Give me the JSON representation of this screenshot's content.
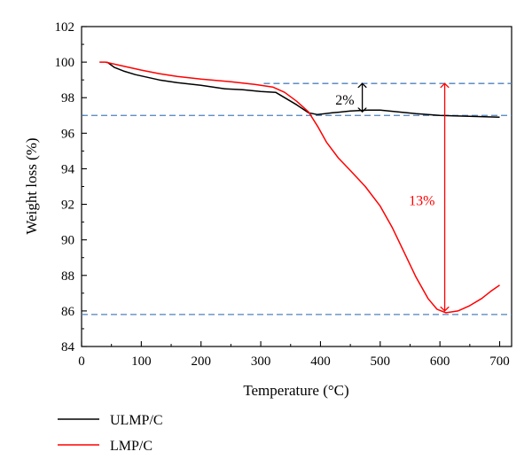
{
  "chart_data": {
    "type": "line",
    "xlabel": "Temperature (°C)",
    "ylabel": "Weight loss (%)",
    "xlim": [
      0,
      720
    ],
    "ylim": [
      84,
      102
    ],
    "xticks": [
      0,
      100,
      200,
      300,
      400,
      500,
      600,
      700
    ],
    "yticks": [
      84,
      86,
      88,
      90,
      92,
      94,
      96,
      98,
      100,
      102
    ],
    "grid": false,
    "legend_position": "bottom-left",
    "series": [
      {
        "name": "ULMP/C",
        "color": "#000000",
        "points": [
          [
            42,
            100.0
          ],
          [
            45,
            99.95
          ],
          [
            55,
            99.7
          ],
          [
            70,
            99.5
          ],
          [
            90,
            99.3
          ],
          [
            110,
            99.15
          ],
          [
            130,
            99.0
          ],
          [
            160,
            98.85
          ],
          [
            200,
            98.7
          ],
          [
            240,
            98.5
          ],
          [
            270,
            98.45
          ],
          [
            300,
            98.35
          ],
          [
            325,
            98.3
          ],
          [
            340,
            98.0
          ],
          [
            360,
            97.6
          ],
          [
            380,
            97.15
          ],
          [
            395,
            97.05
          ],
          [
            420,
            97.15
          ],
          [
            450,
            97.25
          ],
          [
            480,
            97.3
          ],
          [
            500,
            97.3
          ],
          [
            530,
            97.2
          ],
          [
            560,
            97.1
          ],
          [
            600,
            97.0
          ],
          [
            650,
            96.95
          ],
          [
            700,
            96.9
          ]
        ]
      },
      {
        "name": "LMP/C",
        "color": "#ff0000",
        "points": [
          [
            30,
            100.0
          ],
          [
            40,
            100.0
          ],
          [
            60,
            99.85
          ],
          [
            80,
            99.7
          ],
          [
            100,
            99.55
          ],
          [
            130,
            99.35
          ],
          [
            160,
            99.2
          ],
          [
            200,
            99.05
          ],
          [
            250,
            98.9
          ],
          [
            290,
            98.75
          ],
          [
            320,
            98.6
          ],
          [
            340,
            98.3
          ],
          [
            360,
            97.8
          ],
          [
            380,
            97.2
          ],
          [
            395,
            96.4
          ],
          [
            410,
            95.5
          ],
          [
            430,
            94.6
          ],
          [
            450,
            93.9
          ],
          [
            475,
            93.0
          ],
          [
            500,
            91.9
          ],
          [
            520,
            90.7
          ],
          [
            540,
            89.3
          ],
          [
            560,
            87.9
          ],
          [
            580,
            86.7
          ],
          [
            595,
            86.1
          ],
          [
            610,
            85.9
          ],
          [
            630,
            86.0
          ],
          [
            650,
            86.3
          ],
          [
            670,
            86.7
          ],
          [
            685,
            87.1
          ],
          [
            700,
            87.45
          ]
        ]
      }
    ],
    "reference_lines": [
      {
        "y": 98.8,
        "x_start": 305,
        "x_end": 720,
        "style": "dashed",
        "color": "#4f81bd"
      },
      {
        "y": 97.0,
        "x_start": 0,
        "x_end": 720,
        "style": "dashed",
        "color": "#4f81bd"
      },
      {
        "y": 85.8,
        "x_start": 0,
        "x_end": 720,
        "style": "dashed",
        "color": "#4f81bd"
      }
    ],
    "annotations": [
      {
        "text": "2%",
        "color": "#000000",
        "arrow_x": 470,
        "y_from": 97.2,
        "y_to": 98.8,
        "label_x": 425,
        "label_y": 97.85
      },
      {
        "text": "13%",
        "color": "#ff0000",
        "arrow_x": 608,
        "y_from": 86.0,
        "y_to": 98.8,
        "label_x": 548,
        "label_y": 92.2
      }
    ]
  }
}
